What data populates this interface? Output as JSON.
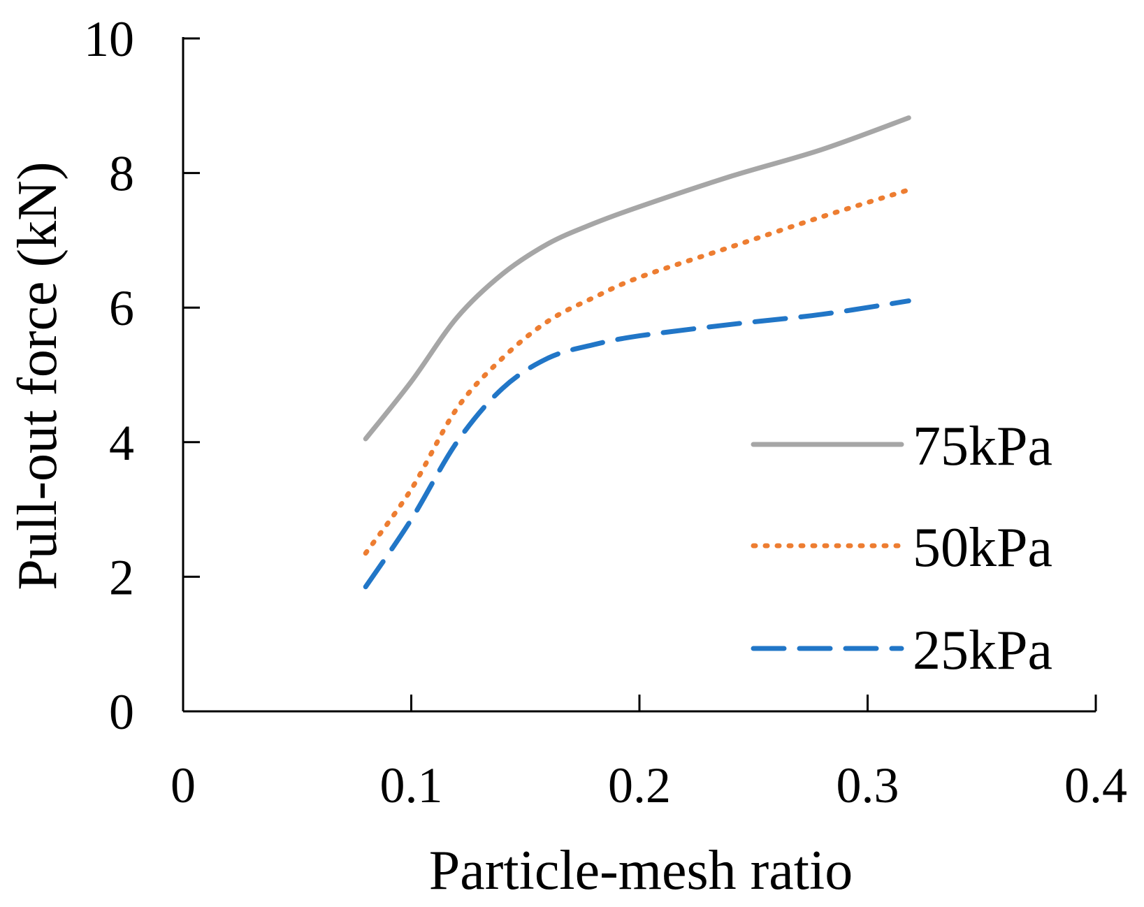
{
  "chart_data": {
    "type": "line",
    "title": "",
    "xlabel": "Particle-mesh ratio",
    "ylabel": "Pull-out force (kN)",
    "xlim": [
      0,
      0.4
    ],
    "ylim": [
      0,
      10
    ],
    "xticks": [
      "0",
      "0.1",
      "0.2",
      "0.3",
      "0.4"
    ],
    "yticks": [
      "0",
      "2",
      "4",
      "6",
      "8",
      "10"
    ],
    "grid": false,
    "legend_position": "bottom-right",
    "series": [
      {
        "name": "75kPa",
        "color": "#a6a6a6",
        "style": "solid",
        "x": [
          0.08,
          0.1,
          0.12,
          0.14,
          0.16,
          0.18,
          0.2,
          0.24,
          0.28,
          0.318
        ],
        "y": [
          4.05,
          4.9,
          5.85,
          6.5,
          6.95,
          7.25,
          7.5,
          7.95,
          8.35,
          8.82
        ]
      },
      {
        "name": "50kPa",
        "color": "#ed7d31",
        "style": "dotted",
        "x": [
          0.08,
          0.1,
          0.12,
          0.14,
          0.16,
          0.18,
          0.2,
          0.24,
          0.28,
          0.318
        ],
        "y": [
          2.35,
          3.3,
          4.5,
          5.25,
          5.8,
          6.15,
          6.45,
          6.9,
          7.35,
          7.75
        ]
      },
      {
        "name": "25kPa",
        "color": "#2176c7",
        "style": "dashed",
        "x": [
          0.08,
          0.1,
          0.12,
          0.14,
          0.16,
          0.18,
          0.2,
          0.24,
          0.28,
          0.318
        ],
        "y": [
          1.85,
          2.85,
          4.0,
          4.8,
          5.25,
          5.45,
          5.58,
          5.75,
          5.9,
          6.1
        ]
      }
    ]
  }
}
